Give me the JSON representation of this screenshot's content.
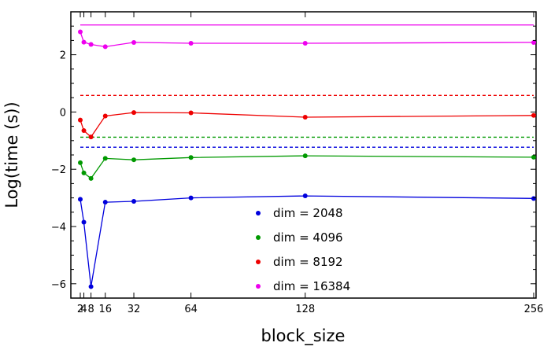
{
  "chart_data": {
    "type": "line",
    "title": "",
    "xlabel": "block_size",
    "ylabel": "Log(time (s))",
    "xlim": [
      0,
      258
    ],
    "ylim": [
      -6.5,
      3.5
    ],
    "x_ticks": [
      2,
      4,
      8,
      16,
      32,
      64,
      128,
      256
    ],
    "x_tick_labels": [
      "2",
      "4",
      "8",
      "16",
      "32",
      "64",
      "128",
      "256"
    ],
    "y_ticks": [
      -6,
      -4,
      -2,
      0,
      2
    ],
    "y_tick_labels": [
      "−6",
      "−4",
      "−2",
      "0",
      "2"
    ],
    "x": [
      2,
      4,
      8,
      16,
      32,
      64,
      128,
      256
    ],
    "grid": false,
    "legend_position": "bottom-center",
    "series": [
      {
        "name": "dim = 2048",
        "color": "#0000dd",
        "values": [
          -3.05,
          -3.85,
          -6.1,
          -3.15,
          -3.12,
          -3.0,
          -2.93,
          -3.02
        ],
        "baseline": -1.23
      },
      {
        "name": "dim = 4096",
        "color": "#009900",
        "values": [
          -1.77,
          -2.13,
          -2.32,
          -1.62,
          -1.67,
          -1.59,
          -1.53,
          -1.58
        ],
        "baseline": -0.88
      },
      {
        "name": "dim = 8192",
        "color": "#ee0000",
        "values": [
          -0.28,
          -0.65,
          -0.87,
          -0.14,
          -0.02,
          -0.03,
          -0.18,
          -0.12
        ],
        "baseline": 0.58
      },
      {
        "name": "dim = 16384",
        "color": "#ee00ee",
        "values": [
          2.8,
          2.44,
          2.36,
          2.28,
          2.43,
          2.4,
          2.4,
          2.43
        ],
        "baseline": 3.04
      }
    ]
  }
}
